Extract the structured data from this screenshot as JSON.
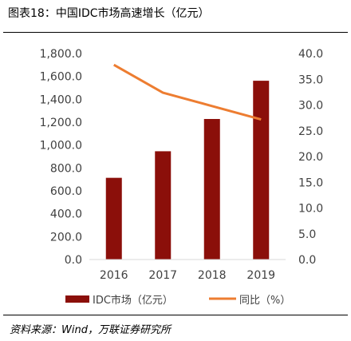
{
  "title": "图表18：中国IDC市场高速增长（亿元）",
  "source": "资料来源：Wind，万联证券研究所",
  "colors": {
    "bar": "#8b0f0a",
    "line": "#ed7d31",
    "axis_text": "#404040"
  },
  "chart_data": {
    "type": "bar",
    "categories": [
      "2016",
      "2017",
      "2018",
      "2019"
    ],
    "series": [
      {
        "name": "IDC市场（亿元）",
        "type": "bar",
        "axis": "left",
        "values": [
          714,
          946,
          1228,
          1562
        ]
      },
      {
        "name": "同比（%）",
        "type": "line",
        "axis": "right",
        "values": [
          37.8,
          32.4,
          29.8,
          27.2
        ]
      }
    ],
    "y_left": {
      "ylim": [
        0,
        1800
      ],
      "ticks": [
        "0.0",
        "200.0",
        "400.0",
        "600.0",
        "800.0",
        "1,000.0",
        "1,200.0",
        "1,400.0",
        "1,600.0",
        "1,800.0"
      ]
    },
    "y_right": {
      "ylim": [
        0,
        40
      ],
      "ticks": [
        "0.0",
        "5.0",
        "10.0",
        "15.0",
        "20.0",
        "25.0",
        "30.0",
        "35.0",
        "40.0"
      ]
    },
    "legend_position": "bottom",
    "grid": false
  }
}
